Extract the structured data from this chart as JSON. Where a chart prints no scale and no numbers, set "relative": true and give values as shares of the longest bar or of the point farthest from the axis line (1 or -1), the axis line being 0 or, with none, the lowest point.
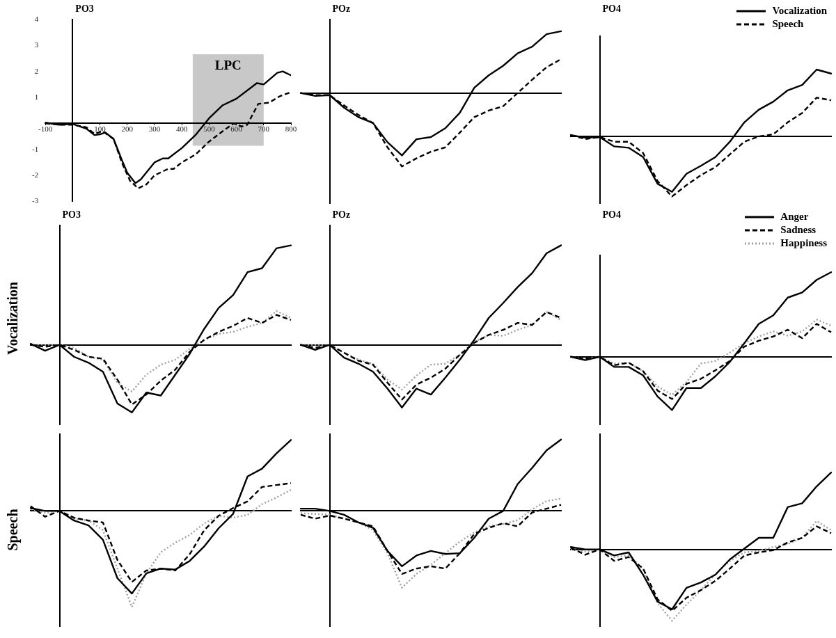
{
  "chart_data": [
    {
      "type": "line",
      "title": "PO3",
      "xlim": [
        -100,
        800
      ],
      "ylim": [
        -3,
        4
      ],
      "xticks": [
        -100,
        100,
        200,
        300,
        400,
        500,
        600,
        700,
        800
      ],
      "yticks": [
        -3,
        -2,
        -1,
        1,
        2,
        3,
        4
      ],
      "bands": [
        {
          "axis": "x",
          "from": 440,
          "to": 700,
          "label": "LPC",
          "color": "#c8c8c8"
        }
      ],
      "series": [
        {
          "color": "#000000",
          "line_style": "solid",
          "x": [
            -100,
            -50,
            0,
            50,
            80,
            100,
            120,
            150,
            180,
            200,
            230,
            250,
            300,
            330,
            350,
            400,
            450,
            500,
            550,
            600,
            650,
            675,
            700,
            750,
            770,
            800
          ],
          "values": [
            0.03,
            -0.05,
            -0.02,
            -0.2,
            -0.45,
            -0.42,
            -0.35,
            -0.6,
            -1.4,
            -1.9,
            -2.3,
            -2.15,
            -1.5,
            -1.35,
            -1.35,
            -0.95,
            -0.45,
            0.2,
            0.7,
            0.95,
            1.35,
            1.55,
            1.5,
            1.95,
            2.0,
            1.85
          ]
        },
        {
          "color": "#000000",
          "line_style": "dashed",
          "x": [
            -100,
            -50,
            0,
            50,
            80,
            110,
            150,
            180,
            210,
            240,
            270,
            300,
            350,
            370,
            400,
            450,
            500,
            550,
            590,
            620,
            640,
            680,
            720,
            760,
            800
          ],
          "values": [
            0.0,
            -0.05,
            -0.05,
            -0.15,
            -0.4,
            -0.3,
            -0.6,
            -1.5,
            -2.2,
            -2.5,
            -2.35,
            -2.0,
            -1.75,
            -1.75,
            -1.5,
            -1.2,
            -0.7,
            -0.3,
            0.0,
            -0.12,
            -0.05,
            0.75,
            0.8,
            1.05,
            1.2
          ]
        }
      ]
    },
    {
      "type": "line",
      "title": "POz",
      "relative": true,
      "categories": [
        null,
        null,
        null,
        null,
        null,
        null,
        null,
        null,
        null,
        null,
        null,
        null,
        null,
        null,
        null,
        null,
        null,
        null,
        null
      ],
      "series": [
        {
          "color": "#000000",
          "line_style": "solid",
          "values": [
            0,
            -0.04,
            -0.03,
            -0.2,
            -0.33,
            -0.41,
            -0.67,
            -0.85,
            -0.63,
            -0.6,
            -0.48,
            -0.27,
            0.07,
            0.24,
            0.37,
            0.54,
            0.63,
            0.8,
            0.84
          ]
        },
        {
          "color": "#000000",
          "line_style": "dashed",
          "values": [
            0,
            -0.03,
            -0.03,
            -0.17,
            -0.3,
            -0.41,
            -0.74,
            -1.0,
            -0.89,
            -0.8,
            -0.74,
            -0.54,
            -0.33,
            -0.24,
            -0.18,
            0,
            0.18,
            0.35,
            0.46
          ]
        }
      ]
    },
    {
      "type": "line",
      "title": "PO4",
      "relative": true,
      "legend": "top right",
      "categories": [
        null,
        null,
        null,
        null,
        null,
        null,
        null,
        null,
        null,
        null,
        null,
        null,
        null,
        null,
        null,
        null,
        null,
        null,
        null
      ],
      "series": [
        {
          "name": "Vocalization",
          "color": "#000000",
          "line_style": "solid",
          "values": [
            0.02,
            -0.02,
            -0.01,
            -0.15,
            -0.17,
            -0.31,
            -0.71,
            -0.83,
            -0.56,
            -0.44,
            -0.31,
            -0.08,
            0.21,
            0.4,
            0.52,
            0.69,
            0.77,
            1.0,
            0.94
          ]
        },
        {
          "name": "Speech",
          "color": "#000000",
          "line_style": "dashed",
          "values": [
            0.02,
            -0.04,
            -0.01,
            -0.08,
            -0.08,
            -0.25,
            -0.67,
            -0.9,
            -0.73,
            -0.58,
            -0.46,
            -0.27,
            -0.08,
            0,
            0.03,
            0.21,
            0.35,
            0.58,
            0.54
          ]
        }
      ]
    },
    {
      "type": "line",
      "title": "PO3",
      "ylabel": "Vocalization",
      "relative": true,
      "categories": [
        null,
        null,
        null,
        null,
        null,
        null,
        null,
        null,
        null,
        null,
        null,
        null,
        null,
        null,
        null,
        null,
        null,
        null,
        null
      ],
      "series": [
        {
          "color": "#000000",
          "line_style": "solid",
          "values": [
            0.01,
            -0.06,
            0,
            -0.12,
            -0.18,
            -0.27,
            -0.59,
            -0.68,
            -0.48,
            -0.51,
            -0.3,
            -0.09,
            0.16,
            0.37,
            0.5,
            0.73,
            0.77,
            0.97,
            1.0
          ]
        },
        {
          "color": "#000000",
          "line_style": "dashed",
          "values": [
            0,
            -0.02,
            0,
            -0.05,
            -0.12,
            -0.14,
            -0.35,
            -0.6,
            -0.5,
            -0.36,
            -0.25,
            -0.07,
            0.05,
            0.13,
            0.19,
            0.27,
            0.22,
            0.3,
            0.25
          ]
        },
        {
          "color": "#a0a0a0",
          "line_style": "dotted",
          "values": [
            0,
            0,
            0,
            -0.03,
            -0.12,
            -0.15,
            -0.38,
            -0.47,
            -0.3,
            -0.2,
            -0.15,
            -0.04,
            0.05,
            0.11,
            0.13,
            0.18,
            0.22,
            0.34,
            0.27
          ]
        }
      ]
    },
    {
      "type": "line",
      "title": "POz",
      "relative": true,
      "categories": [
        null,
        null,
        null,
        null,
        null,
        null,
        null,
        null,
        null,
        null,
        null,
        null,
        null,
        null,
        null,
        null,
        null,
        null,
        null
      ],
      "series": [
        {
          "color": "#000000",
          "line_style": "solid",
          "values": [
            0,
            -0.05,
            0,
            -0.13,
            -0.19,
            -0.27,
            -0.44,
            -0.63,
            -0.44,
            -0.5,
            -0.33,
            -0.15,
            0.05,
            0.27,
            0.42,
            0.58,
            0.72,
            0.92,
            1.0
          ]
        },
        {
          "color": "#000000",
          "line_style": "dashed",
          "values": [
            0,
            -0.03,
            0,
            -0.08,
            -0.16,
            -0.2,
            -0.38,
            -0.55,
            -0.4,
            -0.33,
            -0.24,
            -0.1,
            0.02,
            0.1,
            0.15,
            0.22,
            0.2,
            0.33,
            0.27
          ]
        },
        {
          "color": "#a0a0a0",
          "line_style": "dotted",
          "values": [
            0,
            0,
            0,
            -0.08,
            -0.15,
            -0.19,
            -0.35,
            -0.45,
            -0.31,
            -0.2,
            -0.19,
            -0.1,
            0.03,
            0.1,
            0.09,
            0.15,
            0.2,
            0.33,
            0.25
          ]
        }
      ]
    },
    {
      "type": "line",
      "title": "PO4",
      "relative": true,
      "legend": "top right",
      "categories": [
        null,
        null,
        null,
        null,
        null,
        null,
        null,
        null,
        null,
        null,
        null,
        null,
        null,
        null,
        null,
        null,
        null,
        null,
        null
      ],
      "series": [
        {
          "name": "Anger",
          "color": "#000000",
          "line_style": "solid",
          "values": [
            0,
            -0.04,
            0,
            -0.12,
            -0.12,
            -0.22,
            -0.47,
            -0.63,
            -0.37,
            -0.37,
            -0.23,
            -0.06,
            0.16,
            0.39,
            0.49,
            0.7,
            0.76,
            0.91,
            1.0
          ]
        },
        {
          "name": "Sadness",
          "color": "#000000",
          "line_style": "dashed",
          "values": [
            0,
            -0.02,
            0,
            -0.1,
            -0.07,
            -0.17,
            -0.4,
            -0.5,
            -0.32,
            -0.26,
            -0.16,
            -0.05,
            0.12,
            0.19,
            0.24,
            0.32,
            0.22,
            0.39,
            0.29
          ]
        },
        {
          "name": "Happiness",
          "color": "#a0a0a0",
          "line_style": "dotted",
          "values": [
            0,
            -0.02,
            0,
            -0.08,
            -0.07,
            -0.17,
            -0.35,
            -0.45,
            -0.3,
            -0.08,
            -0.05,
            0.05,
            0.16,
            0.24,
            0.3,
            0.25,
            0.3,
            0.44,
            0.37
          ]
        }
      ]
    },
    {
      "type": "line",
      "ylabel": "Speech",
      "relative": true,
      "categories": [
        null,
        null,
        null,
        null,
        null,
        null,
        null,
        null,
        null,
        null,
        null,
        null,
        null,
        null,
        null,
        null,
        null,
        null,
        null
      ],
      "series": [
        {
          "color": "#000000",
          "line_style": "solid",
          "values": [
            0.03,
            0,
            0,
            -0.1,
            -0.15,
            -0.3,
            -0.7,
            -0.86,
            -0.65,
            -0.6,
            -0.61,
            -0.52,
            -0.37,
            -0.18,
            -0.03,
            0.36,
            0.44,
            0.6,
            0.74
          ]
        },
        {
          "color": "#000000",
          "line_style": "dashed",
          "values": [
            0.05,
            -0.06,
            0,
            -0.07,
            -0.1,
            -0.12,
            -0.51,
            -0.74,
            -0.62,
            -0.6,
            -0.62,
            -0.45,
            -0.2,
            -0.05,
            0.03,
            0.1,
            0.25,
            0.27,
            0.29
          ]
        },
        {
          "color": "#a0a0a0",
          "line_style": "dotted",
          "values": [
            0.02,
            -0.02,
            0,
            -0.08,
            -0.1,
            -0.2,
            -0.6,
            -1.0,
            -0.65,
            -0.43,
            -0.33,
            -0.25,
            -0.13,
            -0.05,
            -0.07,
            -0.04,
            0.07,
            0.14,
            0.22
          ]
        }
      ]
    },
    {
      "type": "line",
      "relative": true,
      "categories": [
        null,
        null,
        null,
        null,
        null,
        null,
        null,
        null,
        null,
        null,
        null,
        null,
        null,
        null,
        null,
        null,
        null,
        null,
        null
      ],
      "series": [
        {
          "color": "#000000",
          "line_style": "solid",
          "values": [
            0.03,
            0.03,
            0,
            -0.05,
            -0.15,
            -0.22,
            -0.52,
            -0.72,
            -0.58,
            -0.52,
            -0.56,
            -0.55,
            -0.35,
            -0.1,
            0,
            0.35,
            0.56,
            0.79,
            0.93
          ]
        },
        {
          "color": "#000000",
          "line_style": "dashed",
          "values": [
            -0.05,
            -0.1,
            -0.06,
            -0.1,
            -0.15,
            -0.2,
            -0.52,
            -0.82,
            -0.75,
            -0.72,
            -0.75,
            -0.55,
            -0.3,
            -0.22,
            -0.16,
            -0.2,
            -0.02,
            0.03,
            0.08
          ]
        },
        {
          "color": "#a0a0a0",
          "line_style": "dotted",
          "values": [
            -0.03,
            -0.04,
            -0.05,
            -0.1,
            -0.15,
            -0.25,
            -0.55,
            -1.0,
            -0.82,
            -0.7,
            -0.55,
            -0.4,
            -0.28,
            -0.2,
            -0.17,
            -0.12,
            0.02,
            0.13,
            0.16
          ]
        }
      ]
    },
    {
      "type": "line",
      "relative": true,
      "categories": [
        null,
        null,
        null,
        null,
        null,
        null,
        null,
        null,
        null,
        null,
        null,
        null,
        null,
        null,
        null,
        null,
        null,
        null,
        null
      ],
      "series": [
        {
          "color": "#000000",
          "line_style": "solid",
          "values": [
            0.03,
            0,
            0,
            -0.08,
            -0.04,
            -0.33,
            -0.68,
            -0.78,
            -0.5,
            -0.43,
            -0.33,
            -0.13,
            0.01,
            0.15,
            0.15,
            0.55,
            0.6,
            0.82,
            1.0
          ]
        },
        {
          "color": "#000000",
          "line_style": "dashed",
          "values": [
            0.02,
            -0.07,
            0,
            -0.15,
            -0.1,
            -0.25,
            -0.65,
            -0.8,
            -0.63,
            -0.53,
            -0.41,
            -0.25,
            -0.08,
            -0.04,
            -0.01,
            0.09,
            0.15,
            0.3,
            0.21
          ]
        },
        {
          "color": "#a0a0a0",
          "line_style": "dotted",
          "values": [
            0,
            -0.03,
            0,
            -0.1,
            -0.08,
            -0.25,
            -0.7,
            -0.93,
            -0.72,
            -0.53,
            -0.32,
            -0.15,
            -0.04,
            -0.02,
            0.03,
            0.07,
            0.15,
            0.37,
            0.25
          ]
        }
      ]
    }
  ]
}
